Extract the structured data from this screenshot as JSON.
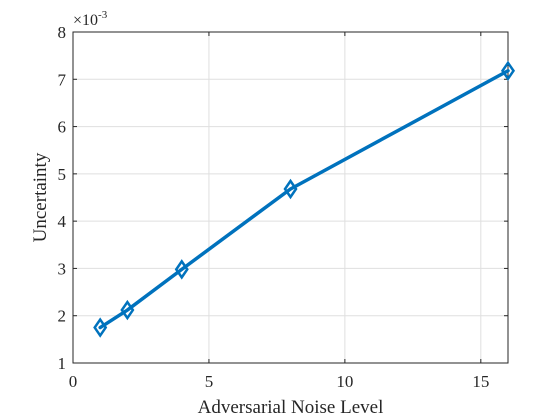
{
  "chart_data": {
    "type": "line",
    "title": "",
    "xlabel": "Adversarial Noise Level",
    "ylabel": "Uncertainty",
    "y_exponent_prefix": "×10",
    "y_exponent_power": "-3",
    "xlim": [
      0,
      16
    ],
    "ylim": [
      1,
      8
    ],
    "xticks": [
      0,
      5,
      10,
      15
    ],
    "yticks": [
      1,
      2,
      3,
      4,
      5,
      6,
      7,
      8
    ],
    "grid": true,
    "series": [
      {
        "x": [
          1,
          2,
          4,
          8,
          16
        ],
        "y": [
          1.75,
          2.12,
          2.98,
          4.68,
          7.18
        ],
        "color": "#0072BD",
        "marker": "diamond"
      }
    ]
  }
}
